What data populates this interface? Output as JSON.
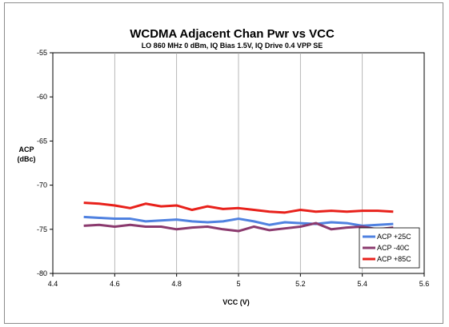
{
  "chart_data": {
    "type": "line",
    "title": "WCDMA Adjacent Chan Pwr vs VCC",
    "subtitle": "LO 860 MHz 0 dBm, IQ Bias 1.5V, IQ Drive 0.4 VPP SE",
    "xlabel": "VCC (V)",
    "ylabel": [
      "ACP",
      "(dBc)"
    ],
    "xlim": [
      4.4,
      5.6
    ],
    "ylim": [
      -80,
      -55
    ],
    "xticks": [
      "4.4",
      "4.6",
      "4.8",
      "5",
      "5.2",
      "5.4",
      "5.6"
    ],
    "yticks": [
      "-55",
      "-60",
      "-65",
      "-70",
      "-75",
      "-80"
    ],
    "grid": "vertical",
    "legend_position": "bottom-right",
    "x": [
      4.5,
      4.55,
      4.6,
      4.65,
      4.7,
      4.75,
      4.8,
      4.85,
      4.9,
      4.95,
      5.0,
      5.05,
      5.1,
      5.15,
      5.2,
      5.25,
      5.3,
      5.35,
      5.4,
      5.45,
      5.5
    ],
    "series": [
      {
        "name": "ACP +25C",
        "color": "#4f81e0",
        "values": [
          -73.6,
          -73.7,
          -73.8,
          -73.8,
          -74.1,
          -74.0,
          -73.9,
          -74.1,
          -74.2,
          -74.1,
          -73.8,
          -74.1,
          -74.5,
          -74.2,
          -74.3,
          -74.4,
          -74.2,
          -74.3,
          -74.6,
          -74.5,
          -74.4
        ]
      },
      {
        "name": "ACP -40C",
        "color": "#8b3a6e",
        "values": [
          -74.6,
          -74.5,
          -74.7,
          -74.5,
          -74.7,
          -74.7,
          -75.0,
          -74.8,
          -74.7,
          -75.0,
          -75.2,
          -74.7,
          -75.1,
          -74.9,
          -74.7,
          -74.3,
          -75.0,
          -74.8,
          -74.7,
          -75.0,
          -74.8
        ]
      },
      {
        "name": "ACP +85C",
        "color": "#e8211b",
        "values": [
          -72.0,
          -72.1,
          -72.3,
          -72.6,
          -72.1,
          -72.4,
          -72.3,
          -72.8,
          -72.4,
          -72.7,
          -72.6,
          -72.8,
          -73.0,
          -73.1,
          -72.8,
          -73.0,
          -72.9,
          -73.0,
          -72.9,
          -72.9,
          -73.0
        ]
      }
    ]
  }
}
